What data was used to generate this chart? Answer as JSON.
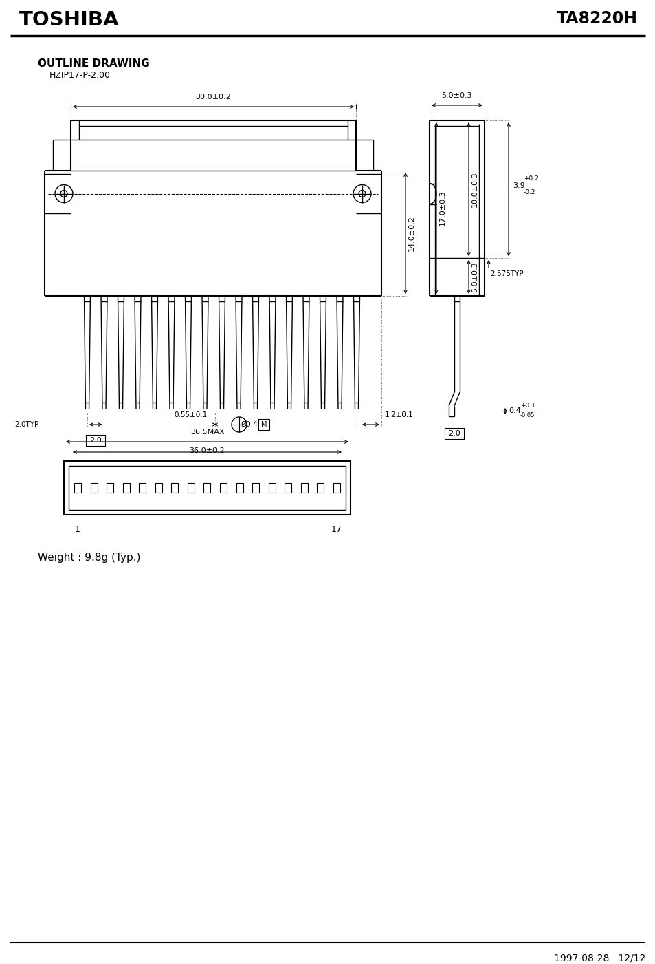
{
  "title_left": "TOSHIBA",
  "title_right": "TA8220H",
  "outline_title": "OUTLINE DRAWING",
  "outline_subtitle": "HZIP17-P-2.00",
  "footer_date": "1997-08-28",
  "footer_page": "12/12",
  "weight_text": "Weight : 9.8g (Typ.)",
  "bg_color": "#ffffff",
  "line_color": "#000000",
  "dim_30": "30.0±0.2",
  "dim_14": "14.0±0.2",
  "dim_17": "17.0±0.3",
  "dim_10": "10.0±0.3",
  "dim_5top": "5.0±0.3",
  "dim_5bot": "5.0±0.3",
  "dim_20typ": "2.0TYP",
  "dim_2box": "2.0",
  "dim_055": "0.55±0.1",
  "dim_04": "Ø0.4",
  "dim_12": "1.2±0.1",
  "dim_365max": "36.5MAX",
  "dim_360": "36.0±0.2",
  "dim_pin1": "1",
  "dim_pin17": "17",
  "dim_side_5w": "5.0±0.3",
  "dim_side_39": "3.9",
  "dim_side_39tol": "+0.2\n-0.2",
  "dim_side_2575": "2.575TYP",
  "dim_side_04": "0.4",
  "dim_side_04tol_p": "+0.1",
  "dim_side_04tol_m": "-0.05",
  "dim_side_2box": "2.0"
}
